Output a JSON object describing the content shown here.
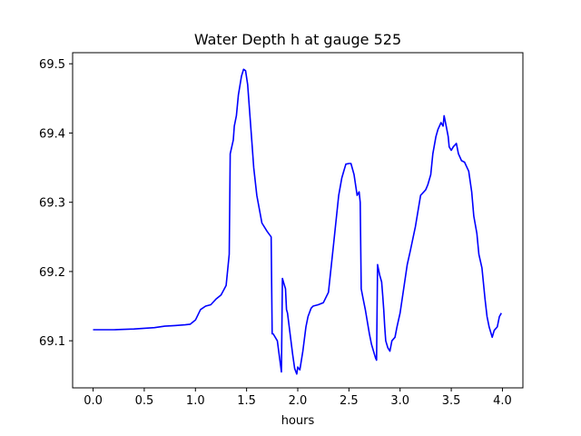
{
  "chart_data": {
    "type": "line",
    "title": "Water Depth h at gauge 525",
    "xlabel": "hours",
    "ylabel": "",
    "xlim": [
      -0.2,
      4.2
    ],
    "ylim": [
      69.032,
      69.516
    ],
    "xticks": [
      0.0,
      0.5,
      1.0,
      1.5,
      2.0,
      2.5,
      3.0,
      3.5,
      4.0
    ],
    "xtick_labels": [
      "0.0",
      "0.5",
      "1.0",
      "1.5",
      "2.0",
      "2.5",
      "3.0",
      "3.5",
      "4.0"
    ],
    "yticks": [
      69.1,
      69.2,
      69.3,
      69.4,
      69.5
    ],
    "ytick_labels": [
      "69.1",
      "69.2",
      "69.3",
      "69.4",
      "69.5"
    ],
    "grid": false,
    "series": [
      {
        "color": "#0000ff",
        "x": [
          0.0,
          0.2,
          0.4,
          0.6,
          0.7,
          0.8,
          0.9,
          0.95,
          1.0,
          1.05,
          1.1,
          1.15,
          1.2,
          1.25,
          1.3,
          1.33,
          1.34,
          1.37,
          1.38,
          1.4,
          1.42,
          1.45,
          1.47,
          1.49,
          1.51,
          1.55,
          1.57,
          1.6,
          1.65,
          1.7,
          1.74,
          1.75,
          1.76,
          1.8,
          1.84,
          1.85,
          1.86,
          1.88,
          1.89,
          1.9,
          1.95,
          1.97,
          1.99,
          2.0,
          2.02,
          2.05,
          2.08,
          2.1,
          2.13,
          2.15,
          2.2,
          2.25,
          2.3,
          2.35,
          2.4,
          2.43,
          2.45,
          2.47,
          2.5,
          2.52,
          2.55,
          2.58,
          2.6,
          2.61,
          2.62,
          2.64,
          2.66,
          2.7,
          2.72,
          2.76,
          2.77,
          2.78,
          2.8,
          2.82,
          2.83,
          2.84,
          2.85,
          2.86,
          2.88,
          2.9,
          2.92,
          2.95,
          2.97,
          3.0,
          3.03,
          3.07,
          3.1,
          3.15,
          3.2,
          3.25,
          3.27,
          3.3,
          3.32,
          3.35,
          3.37,
          3.4,
          3.42,
          3.43,
          3.45,
          3.47,
          3.48,
          3.5,
          3.52,
          3.55,
          3.57,
          3.6,
          3.63,
          3.67,
          3.7,
          3.72,
          3.75,
          3.77,
          3.8,
          3.83,
          3.85,
          3.87,
          3.9,
          3.92,
          3.95,
          3.97,
          3.99
        ],
        "y": [
          69.116,
          69.116,
          69.117,
          69.119,
          69.121,
          69.122,
          69.123,
          69.124,
          69.13,
          69.145,
          69.15,
          69.152,
          69.16,
          69.166,
          69.18,
          69.225,
          69.37,
          69.39,
          69.41,
          69.425,
          69.455,
          69.482,
          69.492,
          69.49,
          69.47,
          69.39,
          69.35,
          69.31,
          69.27,
          69.258,
          69.25,
          69.11,
          69.11,
          69.1,
          69.055,
          69.19,
          69.185,
          69.175,
          69.145,
          69.14,
          69.08,
          69.06,
          69.052,
          69.062,
          69.058,
          69.085,
          69.12,
          69.135,
          69.147,
          69.15,
          69.152,
          69.155,
          69.17,
          69.24,
          69.31,
          69.335,
          69.345,
          69.355,
          69.356,
          69.356,
          69.34,
          69.31,
          69.315,
          69.3,
          69.175,
          69.16,
          69.145,
          69.11,
          69.095,
          69.075,
          69.072,
          69.21,
          69.195,
          69.185,
          69.165,
          69.145,
          69.12,
          69.1,
          69.09,
          69.085,
          69.1,
          69.105,
          69.12,
          69.14,
          69.17,
          69.21,
          69.23,
          69.265,
          69.31,
          69.318,
          69.325,
          69.34,
          69.37,
          69.395,
          69.405,
          69.415,
          69.41,
          69.425,
          69.41,
          69.395,
          69.38,
          69.375,
          69.38,
          69.385,
          69.37,
          69.36,
          69.358,
          69.345,
          69.315,
          69.28,
          69.255,
          69.225,
          69.205,
          69.16,
          69.135,
          69.12,
          69.105,
          69.115,
          69.12,
          69.135,
          69.14
        ]
      }
    ]
  }
}
